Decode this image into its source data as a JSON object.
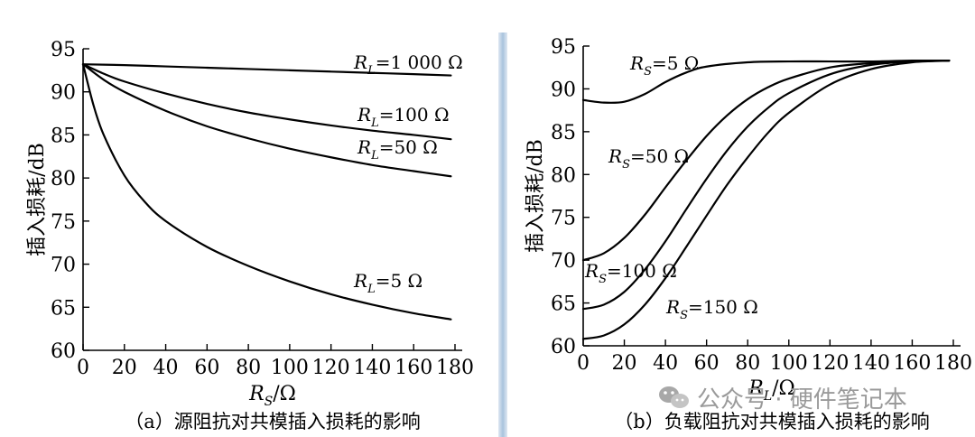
{
  "chart_data": [
    {
      "type": "line",
      "caption": "（a）源阻抗对共模插入损耗的影响",
      "xlabel": {
        "main": "R",
        "sub": "S",
        "rest": "/Ω"
      },
      "ylabel": "插入损耗/dB",
      "xlim": [
        0,
        180
      ],
      "ylim": [
        60,
        95
      ],
      "xticks": [
        0,
        20,
        40,
        60,
        80,
        100,
        120,
        140,
        160,
        180
      ],
      "yticks": [
        60,
        65,
        70,
        75,
        80,
        85,
        90,
        95
      ],
      "grid": false,
      "series": [
        {
          "label": {
            "main": "R",
            "sub": "L",
            "rest": "=1 000 Ω"
          },
          "x": [
            0,
            20,
            40,
            60,
            80,
            100,
            120,
            140,
            160,
            178
          ],
          "y": [
            93.2,
            93.1,
            92.95,
            92.8,
            92.65,
            92.5,
            92.35,
            92.2,
            92.05,
            91.9
          ]
        },
        {
          "label": {
            "main": "R",
            "sub": "L",
            "rest": "=100 Ω"
          },
          "x": [
            0,
            10,
            20,
            40,
            60,
            80,
            100,
            120,
            140,
            160,
            178
          ],
          "y": [
            93.2,
            92.1,
            91.2,
            89.8,
            88.6,
            87.6,
            86.8,
            86.1,
            85.5,
            85.0,
            84.5
          ]
        },
        {
          "label": {
            "main": "R",
            "sub": "L",
            "rest": "=50 Ω"
          },
          "x": [
            0,
            10,
            20,
            40,
            60,
            80,
            100,
            120,
            140,
            160,
            178
          ],
          "y": [
            93.2,
            91.4,
            90.0,
            87.8,
            86.0,
            84.6,
            83.4,
            82.4,
            81.5,
            80.8,
            80.2
          ]
        },
        {
          "label": {
            "main": "R",
            "sub": "L",
            "rest": "=5 Ω"
          },
          "x": [
            0,
            5,
            10,
            20,
            30,
            40,
            60,
            80,
            100,
            120,
            140,
            160,
            178
          ],
          "y": [
            93.2,
            88.5,
            85.0,
            80.3,
            77.2,
            75.0,
            72.0,
            69.8,
            68.0,
            66.5,
            65.3,
            64.3,
            63.6
          ]
        }
      ]
    },
    {
      "type": "line",
      "caption": "（b）负载阻抗对共模插入损耗的影响",
      "xlabel": {
        "main": "R",
        "sub": "L",
        "rest": "/Ω"
      },
      "ylabel": "插入损耗/dB",
      "xlim": [
        0,
        180
      ],
      "ylim": [
        60,
        95
      ],
      "xticks": [
        0,
        20,
        40,
        60,
        80,
        100,
        120,
        140,
        160,
        180
      ],
      "yticks": [
        60,
        65,
        70,
        75,
        80,
        85,
        90,
        95
      ],
      "grid": false,
      "series": [
        {
          "label": {
            "main": "R",
            "sub": "S",
            "rest": "=5 Ω"
          },
          "x": [
            0,
            10,
            20,
            30,
            40,
            50,
            60,
            80,
            100,
            120,
            140,
            160,
            178
          ],
          "y": [
            88.7,
            88.4,
            88.5,
            89.4,
            90.8,
            91.9,
            92.6,
            93.1,
            93.2,
            93.2,
            93.2,
            93.3,
            93.3
          ]
        },
        {
          "label": {
            "main": "R",
            "sub": "S",
            "rest": "=50 Ω"
          },
          "x": [
            0,
            10,
            20,
            30,
            40,
            50,
            60,
            70,
            80,
            90,
            100,
            120,
            140,
            160,
            178
          ],
          "y": [
            70.0,
            70.8,
            72.6,
            75.3,
            78.5,
            81.6,
            84.5,
            86.9,
            88.8,
            90.2,
            91.2,
            92.5,
            93.0,
            93.2,
            93.3
          ]
        },
        {
          "label": {
            "main": "R",
            "sub": "S",
            "rest": "=100 Ω"
          },
          "x": [
            0,
            10,
            20,
            30,
            40,
            50,
            60,
            70,
            80,
            90,
            100,
            120,
            140,
            160,
            178
          ],
          "y": [
            64.3,
            64.8,
            66.3,
            68.9,
            72.2,
            75.9,
            79.5,
            82.8,
            85.6,
            87.8,
            89.5,
            91.7,
            92.8,
            93.2,
            93.3
          ]
        },
        {
          "label": {
            "main": "R",
            "sub": "S",
            "rest": "=150 Ω"
          },
          "x": [
            0,
            10,
            20,
            30,
            40,
            50,
            60,
            70,
            80,
            90,
            100,
            120,
            140,
            160,
            178
          ],
          "y": [
            60.8,
            61.2,
            62.5,
            64.8,
            67.9,
            71.5,
            75.2,
            78.8,
            82.0,
            84.9,
            87.2,
            90.5,
            92.3,
            93.1,
            93.3
          ]
        }
      ]
    }
  ],
  "watermark": "公众号 · 硬件笔记本"
}
